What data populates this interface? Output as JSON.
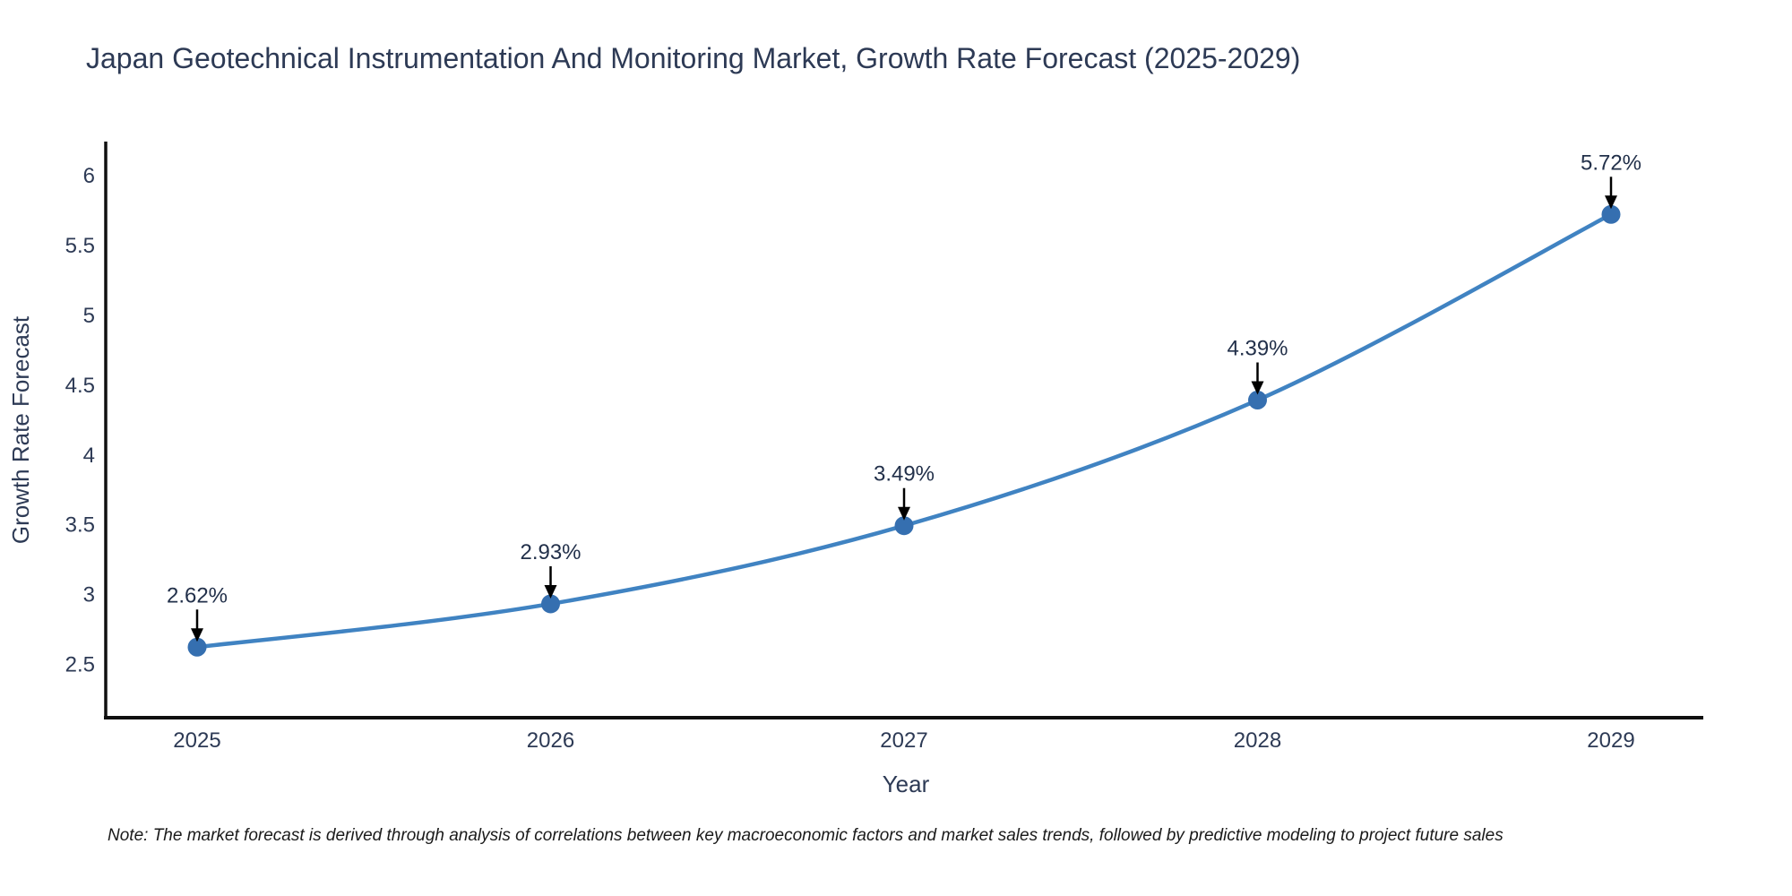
{
  "chart": {
    "title": "Japan Geotechnical Instrumentation And Monitoring Market, Growth Rate Forecast (2025-2029)",
    "note": "Note: The market forecast is derived through analysis of correlations between key macroeconomic factors and market sales trends, followed by predictive modeling to project future sales"
  },
  "chart_data": {
    "type": "line",
    "title": "Japan Geotechnical Instrumentation And Monitoring Market, Growth Rate Forecast (2025-2029)",
    "categories": [
      "2025",
      "2026",
      "2027",
      "2028",
      "2029"
    ],
    "series": [
      {
        "name": "Growth Rate Forecast",
        "values": [
          2.62,
          2.93,
          3.49,
          4.39,
          5.72
        ]
      }
    ],
    "point_labels": [
      "2.62%",
      "2.93%",
      "3.49%",
      "4.39%",
      "5.72%"
    ],
    "xlabel": "Year",
    "ylabel": "Growth Rate Forecast",
    "yticks": [
      2.5,
      3,
      3.5,
      4,
      4.5,
      5,
      5.5,
      6
    ],
    "ylim": [
      2.12,
      6.23
    ],
    "line_shape": "spline",
    "grid": false,
    "legend": false,
    "annotation_style": "black-arrow-down-to-point",
    "colors": {
      "line": "#4083c2",
      "marker": "#356fb0",
      "axis_line": "#101010",
      "text": "#2d3a55",
      "annotation_arrow": "#000000"
    }
  }
}
